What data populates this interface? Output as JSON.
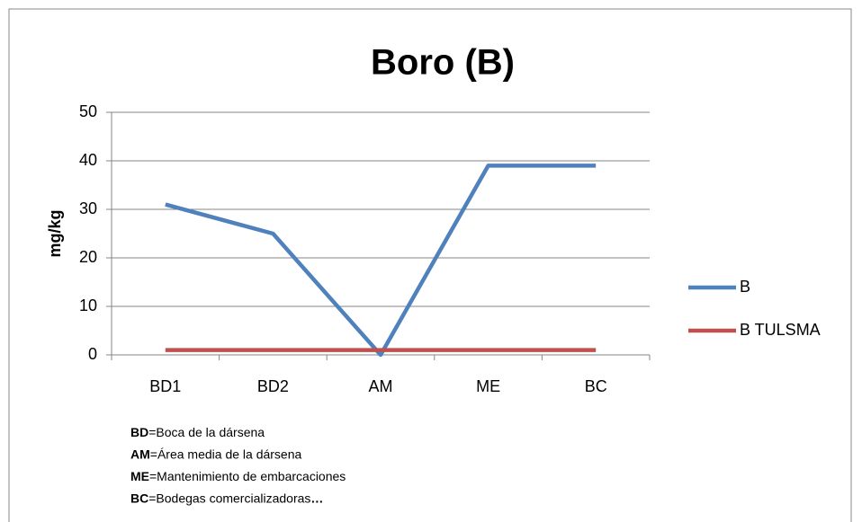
{
  "chart_data": {
    "type": "line",
    "title": "Boro (B)",
    "y_label": "mg/kg",
    "categories": [
      "BD1",
      "BD2",
      "AM",
      "ME",
      "BC"
    ],
    "series": [
      {
        "name": "B",
        "color": "#4f81bd",
        "values": [
          31,
          25,
          0,
          39,
          39
        ]
      },
      {
        "name": "B TULSMA",
        "color": "#c0504d",
        "values": [
          1,
          1,
          1,
          1,
          1
        ]
      }
    ],
    "ylim": [
      0,
      50
    ],
    "yticks": [
      0,
      10,
      20,
      30,
      40,
      50
    ],
    "grid": true,
    "legend": "right",
    "notes": [
      {
        "abbr": "BD",
        "text": "=Boca de la dársena"
      },
      {
        "abbr": "AM",
        "text": "=Área media de la dársena"
      },
      {
        "abbr": "ME",
        "text": "=Mantenimiento de embarcaciones"
      },
      {
        "abbr": "BC",
        "text": "=Bodegas comercializadoras",
        "ellipsis": "…"
      }
    ]
  }
}
